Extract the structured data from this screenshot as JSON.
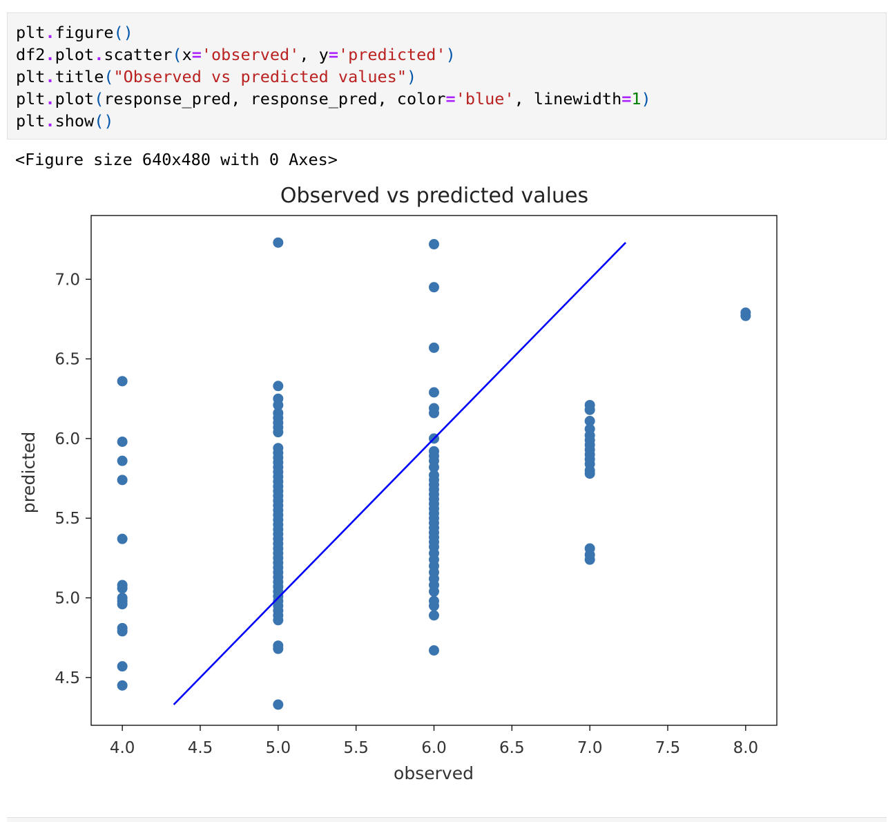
{
  "code": {
    "lines": [
      [
        {
          "t": "plt"
        },
        {
          "t": ".",
          "c": "op"
        },
        {
          "t": "figure"
        },
        {
          "t": "()",
          "c": "paren"
        }
      ],
      [
        {
          "t": "df2"
        },
        {
          "t": ".",
          "c": "op"
        },
        {
          "t": "plot"
        },
        {
          "t": ".",
          "c": "op"
        },
        {
          "t": "scatter"
        },
        {
          "t": "(",
          "c": "paren"
        },
        {
          "t": "x"
        },
        {
          "t": "=",
          "c": "op"
        },
        {
          "t": "'observed'",
          "c": "str"
        },
        {
          "t": ", y"
        },
        {
          "t": "=",
          "c": "op"
        },
        {
          "t": "'predicted'",
          "c": "str"
        },
        {
          "t": ")",
          "c": "paren"
        }
      ],
      [
        {
          "t": "plt"
        },
        {
          "t": ".",
          "c": "op"
        },
        {
          "t": "title"
        },
        {
          "t": "(",
          "c": "paren"
        },
        {
          "t": "\"Observed vs predicted values\"",
          "c": "str"
        },
        {
          "t": ")",
          "c": "paren"
        }
      ],
      [
        {
          "t": "plt"
        },
        {
          "t": ".",
          "c": "op"
        },
        {
          "t": "plot"
        },
        {
          "t": "(",
          "c": "paren"
        },
        {
          "t": "response_pred, response_pred, color"
        },
        {
          "t": "=",
          "c": "op"
        },
        {
          "t": "'blue'",
          "c": "str"
        },
        {
          "t": ", linewidth"
        },
        {
          "t": "=",
          "c": "op"
        },
        {
          "t": "1",
          "c": "num"
        },
        {
          "t": ")",
          "c": "paren"
        }
      ],
      [
        {
          "t": "plt"
        },
        {
          "t": ".",
          "c": "op"
        },
        {
          "t": "show"
        },
        {
          "t": "()",
          "c": "paren"
        }
      ]
    ]
  },
  "output": {
    "figure_text": "<Figure size 640x480 with 0 Axes>"
  },
  "chart_data": {
    "type": "scatter",
    "title": "Observed vs predicted values",
    "xlabel": "observed",
    "ylabel": "predicted",
    "xlim": [
      3.8,
      8.2
    ],
    "ylim": [
      4.2,
      7.4
    ],
    "xticks": [
      4.0,
      4.5,
      5.0,
      5.5,
      6.0,
      6.5,
      7.0,
      7.5,
      8.0
    ],
    "yticks": [
      4.5,
      5.0,
      5.5,
      6.0,
      6.5,
      7.0
    ],
    "grid": false,
    "point_color": "#3b75af",
    "line_color": "#0000ff",
    "line": {
      "x": [
        4.33,
        7.23
      ],
      "y": [
        4.33,
        7.23
      ]
    },
    "points": [
      {
        "x": 4,
        "y": [
          6.36,
          5.98,
          5.86,
          5.74,
          5.37,
          5.08,
          5.06,
          5.0,
          4.98,
          4.96,
          4.81,
          4.79,
          4.57,
          4.45
        ]
      },
      {
        "x": 5,
        "y": [
          7.23,
          6.33,
          6.25,
          6.21,
          6.16,
          6.13,
          6.1,
          6.07,
          6.04,
          5.94,
          5.91,
          5.88,
          5.85,
          5.82,
          5.79,
          5.76,
          5.73,
          5.7,
          5.67,
          5.64,
          5.61,
          5.58,
          5.55,
          5.52,
          5.49,
          5.46,
          5.43,
          5.4,
          5.37,
          5.34,
          5.31,
          5.28,
          5.25,
          5.22,
          5.19,
          5.16,
          5.13,
          5.1,
          5.07,
          5.04,
          5.01,
          4.98,
          4.95,
          4.92,
          4.89,
          4.86,
          4.7,
          4.68,
          4.33
        ]
      },
      {
        "x": 6,
        "y": [
          7.22,
          6.95,
          6.57,
          6.29,
          6.19,
          6.16,
          6.0,
          5.92,
          5.89,
          5.86,
          5.82,
          5.77,
          5.74,
          5.71,
          5.68,
          5.65,
          5.62,
          5.59,
          5.56,
          5.53,
          5.5,
          5.47,
          5.44,
          5.41,
          5.38,
          5.35,
          5.32,
          5.28,
          5.24,
          5.2,
          5.16,
          5.12,
          5.08,
          5.04,
          4.98,
          4.95,
          4.89,
          4.67
        ]
      },
      {
        "x": 7,
        "y": [
          6.21,
          6.18,
          6.11,
          6.06,
          6.02,
          5.99,
          5.96,
          5.93,
          5.9,
          5.87,
          5.84,
          5.8,
          5.78,
          5.31,
          5.27,
          5.24
        ]
      },
      {
        "x": 8,
        "y": [
          6.79,
          6.77
        ]
      }
    ]
  }
}
